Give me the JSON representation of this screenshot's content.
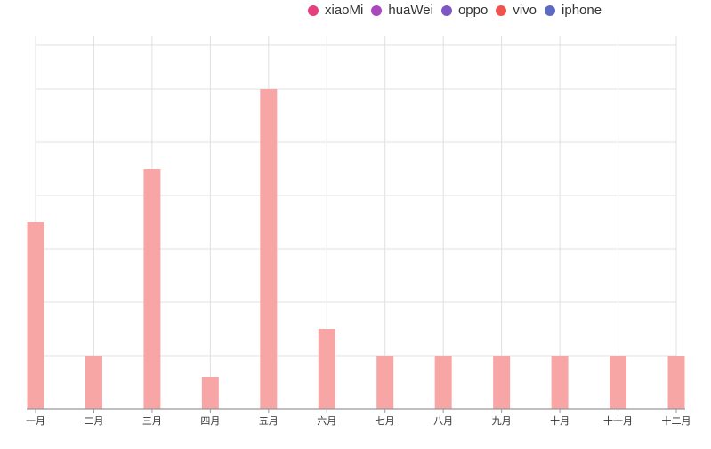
{
  "chart_data": {
    "type": "bar",
    "categories": [
      "一月",
      "二月",
      "三月",
      "四月",
      "五月",
      "六月",
      "七月",
      "八月",
      "九月",
      "十月",
      "十一月",
      "十二月"
    ],
    "series": [
      {
        "name": "xiaoMi",
        "values": [
          35,
          10,
          45,
          6,
          60,
          15,
          10,
          10,
          10,
          10,
          10,
          10
        ],
        "color": "#f8a5a5"
      }
    ],
    "legend": [
      {
        "name": "xiaoMi",
        "color": "#e53f7d"
      },
      {
        "name": "huaWei",
        "color": "#ab47bc"
      },
      {
        "name": "oppo",
        "color": "#7e57c2"
      },
      {
        "name": "vivo",
        "color": "#ef5350"
      },
      {
        "name": "iphone",
        "color": "#5c6bc0"
      }
    ],
    "ylim": [
      0,
      70
    ],
    "grid": true,
    "legend_position": "top-right",
    "bar_color": "#f8a5a5",
    "grid_color": "#e0e0e0",
    "axis_color": "#999999"
  }
}
